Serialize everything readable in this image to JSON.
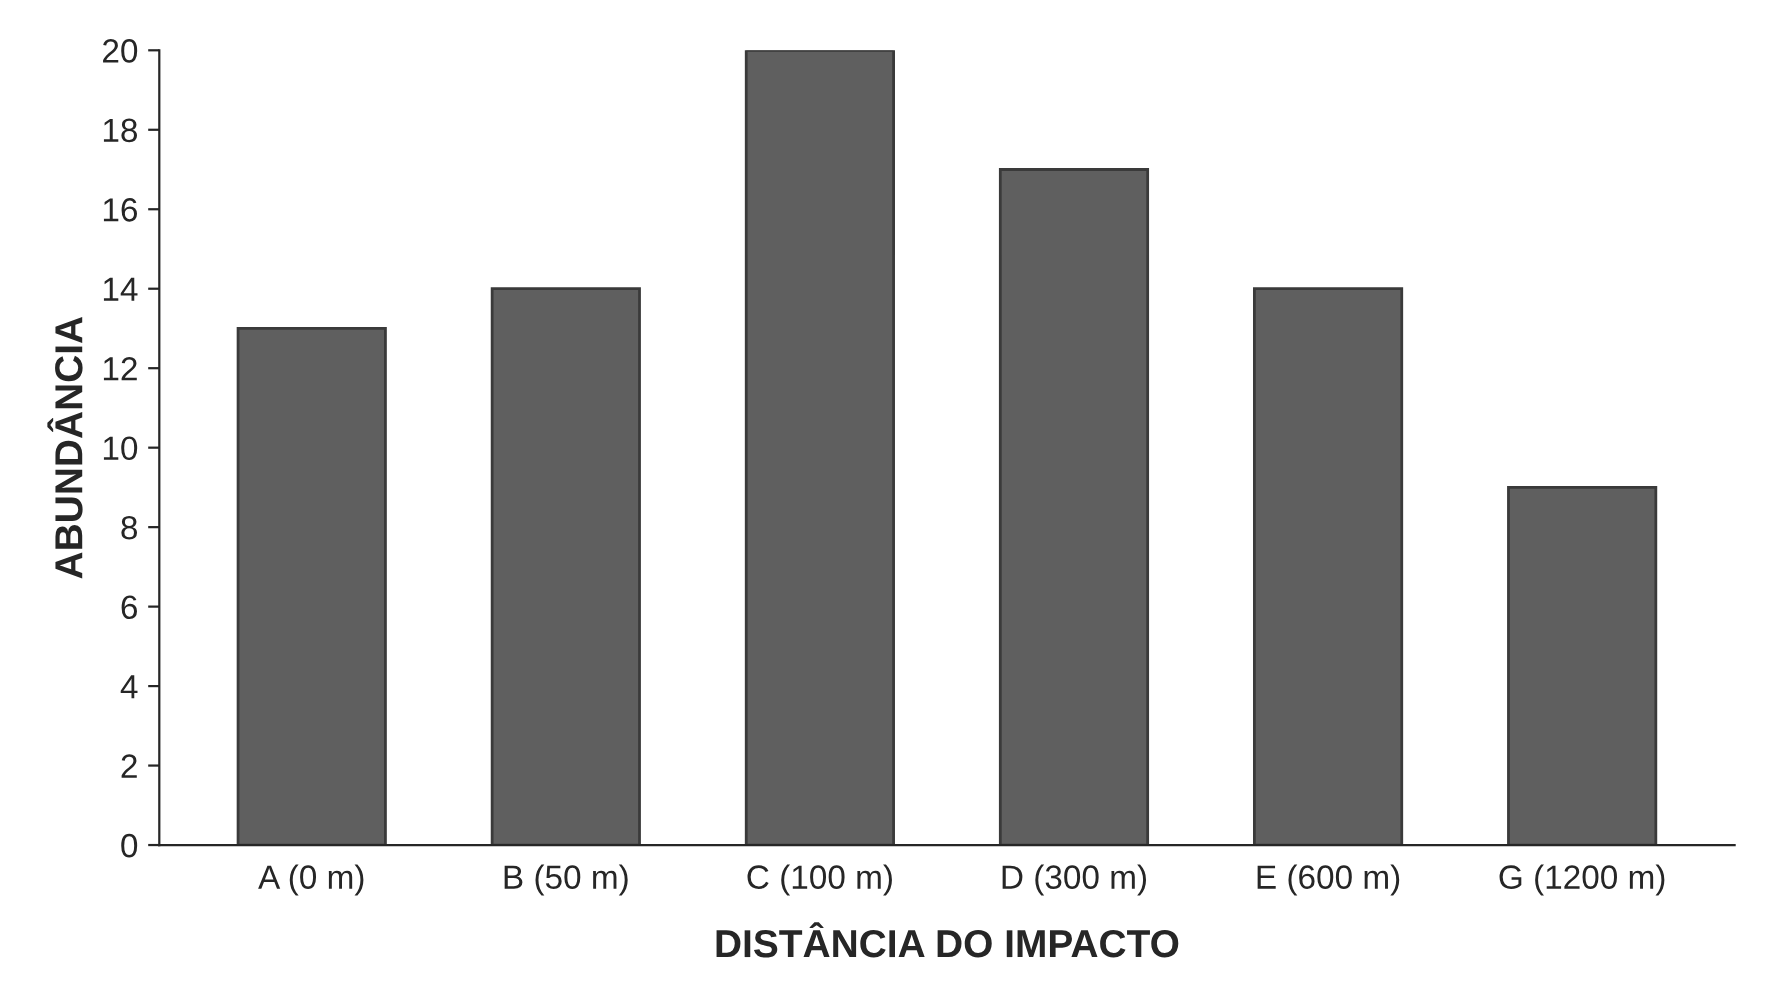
{
  "chart_data": {
    "type": "bar",
    "xlabel": "DISTÂNCIA DO IMPACTO",
    "ylabel": "ABUNDÂNCIA",
    "categories": [
      "A (0 m)",
      "B (50 m)",
      "C (100 m)",
      "D (300 m)",
      "E (600 m)",
      "G (1200 m)"
    ],
    "values": [
      13,
      14,
      20,
      17,
      14,
      9
    ],
    "color": "#5f5f5f",
    "ylim": [
      0,
      20
    ],
    "yticks": [
      0,
      2,
      4,
      6,
      8,
      10,
      12,
      14,
      16,
      18,
      20
    ],
    "grid": false,
    "legend": false
  }
}
